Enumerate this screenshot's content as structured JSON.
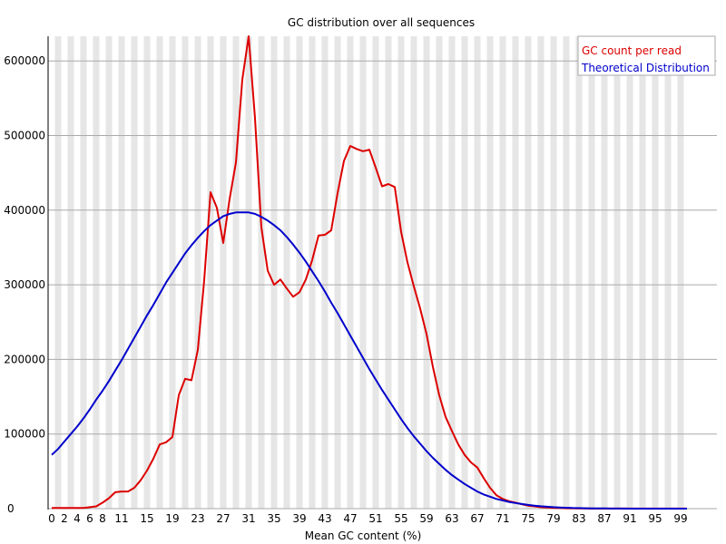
{
  "chart_data": {
    "type": "line",
    "title": "GC distribution over all sequences",
    "xlabel": "Mean GC content (%)",
    "ylabel": "",
    "xlim": [
      0,
      100
    ],
    "ylim": [
      0,
      633000
    ],
    "grid": {
      "horizontal": true,
      "vertical_stripes": true
    },
    "legend_position": "top-right",
    "x_tick_labels": [
      "0",
      "2",
      "4",
      "6",
      "8",
      "11",
      "15",
      "19",
      "23",
      "27",
      "31",
      "35",
      "39",
      "43",
      "47",
      "51",
      "55",
      "59",
      "63",
      "67",
      "71",
      "75",
      "79",
      "83",
      "87",
      "91",
      "95",
      "99"
    ],
    "y_tick_labels": [
      "0",
      "100000",
      "200000",
      "300000",
      "400000",
      "500000",
      "600000"
    ],
    "y_ticks": [
      0,
      100000,
      200000,
      300000,
      400000,
      500000,
      600000
    ],
    "series": [
      {
        "name": "GC count per read",
        "color": "#dd0000",
        "x": [
          0,
          1,
          2,
          3,
          4,
          5,
          6,
          7,
          8,
          9,
          10,
          11,
          12,
          13,
          14,
          15,
          16,
          17,
          18,
          19,
          20,
          21,
          22,
          23,
          24,
          25,
          26,
          27,
          28,
          29,
          30,
          31,
          32,
          33,
          34,
          35,
          36,
          37,
          38,
          39,
          40,
          41,
          42,
          43,
          44,
          45,
          46,
          47,
          48,
          49,
          50,
          51,
          52,
          53,
          54,
          55,
          56,
          57,
          58,
          59,
          60,
          61,
          62,
          63,
          64,
          65,
          66,
          67,
          68,
          69,
          70,
          71,
          72,
          73,
          74,
          75,
          76,
          77,
          78,
          79,
          80,
          81,
          82,
          83,
          84,
          85,
          86,
          87,
          88,
          89,
          90,
          91,
          92,
          93,
          94,
          95,
          96,
          97,
          98,
          99,
          100
        ],
        "values": [
          1000,
          1000,
          1000,
          1000,
          1000,
          1000,
          2000,
          3000,
          8000,
          14000,
          22000,
          23000,
          23000,
          28000,
          38000,
          51000,
          67000,
          86000,
          89000,
          96000,
          152000,
          174000,
          172000,
          213000,
          306000,
          424000,
          403000,
          356000,
          415000,
          464000,
          575000,
          633000,
          523000,
          377000,
          319000,
          300000,
          307000,
          295000,
          284000,
          290000,
          307000,
          333000,
          366000,
          367000,
          373000,
          423000,
          466000,
          486000,
          482000,
          479000,
          481000,
          457000,
          432000,
          435000,
          431000,
          371000,
          330000,
          298000,
          268000,
          234000,
          190000,
          152000,
          123000,
          104000,
          86000,
          72000,
          62000,
          55000,
          41000,
          28000,
          18000,
          13000,
          10000,
          8000,
          6000,
          4000,
          3000,
          2000,
          1500,
          1000,
          1000,
          500,
          500,
          300,
          200,
          100,
          100,
          100,
          100,
          100,
          100,
          100,
          100,
          100,
          100,
          100,
          100,
          100,
          100,
          100,
          100
        ]
      },
      {
        "name": "Theoretical Distribution",
        "color": "#0000cc",
        "x": [
          0,
          1,
          2,
          3,
          4,
          5,
          6,
          7,
          8,
          9,
          10,
          11,
          12,
          13,
          14,
          15,
          16,
          17,
          18,
          19,
          20,
          21,
          22,
          23,
          24,
          25,
          26,
          27,
          28,
          29,
          30,
          31,
          32,
          33,
          34,
          35,
          36,
          37,
          38,
          39,
          40,
          41,
          42,
          43,
          44,
          45,
          46,
          47,
          48,
          49,
          50,
          51,
          52,
          53,
          54,
          55,
          56,
          57,
          58,
          59,
          60,
          61,
          62,
          63,
          64,
          65,
          66,
          67,
          68,
          69,
          70,
          71,
          72,
          73,
          74,
          75,
          76,
          77,
          78,
          79,
          80,
          81,
          82,
          83,
          84,
          85,
          86,
          87,
          88,
          89,
          90,
          91,
          92,
          93,
          94,
          95,
          96,
          97,
          98,
          99,
          100
        ],
        "values": [
          72000,
          80000,
          90000,
          100000,
          110000,
          121000,
          133000,
          146000,
          158000,
          171000,
          185000,
          199000,
          214000,
          229000,
          244000,
          259000,
          273000,
          288000,
          303000,
          316000,
          329000,
          342000,
          353000,
          363000,
          372000,
          380000,
          386000,
          392000,
          395000,
          397000,
          397000,
          397000,
          395000,
          391000,
          386000,
          380000,
          373000,
          364000,
          354000,
          343000,
          331000,
          318000,
          305000,
          291000,
          276000,
          262000,
          247000,
          232000,
          217000,
          202000,
          187000,
          173000,
          159000,
          146000,
          133000,
          120000,
          108000,
          97000,
          87000,
          77000,
          68000,
          60000,
          52000,
          45000,
          39000,
          33000,
          28000,
          23000,
          19000,
          16000,
          13000,
          11000,
          9000,
          7500,
          6200,
          5000,
          4000,
          3200,
          2600,
          2000,
          1600,
          1200,
          900,
          700,
          500,
          400,
          300,
          200,
          150,
          100,
          80,
          60,
          40,
          30,
          20,
          15,
          10,
          8,
          5,
          3,
          2
        ]
      }
    ]
  },
  "plot": {
    "title": "GC distribution over all sequences",
    "xlabel": "Mean GC content (%)",
    "legend": {
      "items": [
        {
          "label": "GC count per read",
          "color": "#dd0000"
        },
        {
          "label": "Theoretical Distribution",
          "color": "#0000cc"
        }
      ]
    },
    "colors": {
      "stripe": "#e6e6e6",
      "gridline": "#aaaaaa",
      "axis": "#000000",
      "legend_border": "#aaaaaa"
    }
  }
}
